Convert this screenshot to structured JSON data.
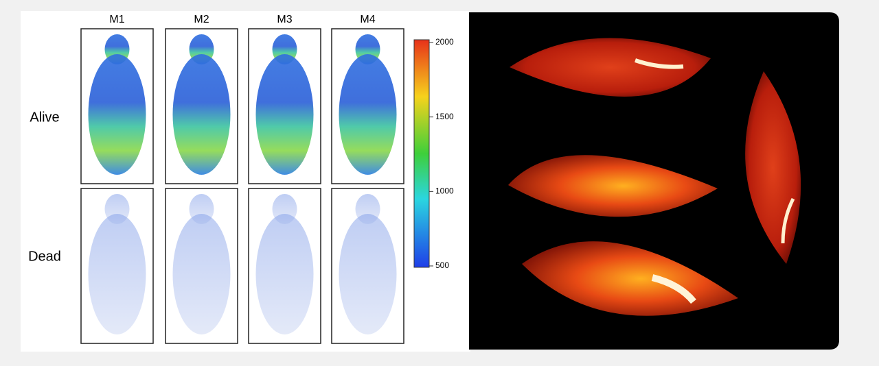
{
  "columns": [
    "M1",
    "M2",
    "M3",
    "M4"
  ],
  "rows": [
    "Alive",
    "Dead"
  ],
  "colorbar": {
    "ticks": [
      2000,
      1500,
      1000,
      500
    ]
  }
}
